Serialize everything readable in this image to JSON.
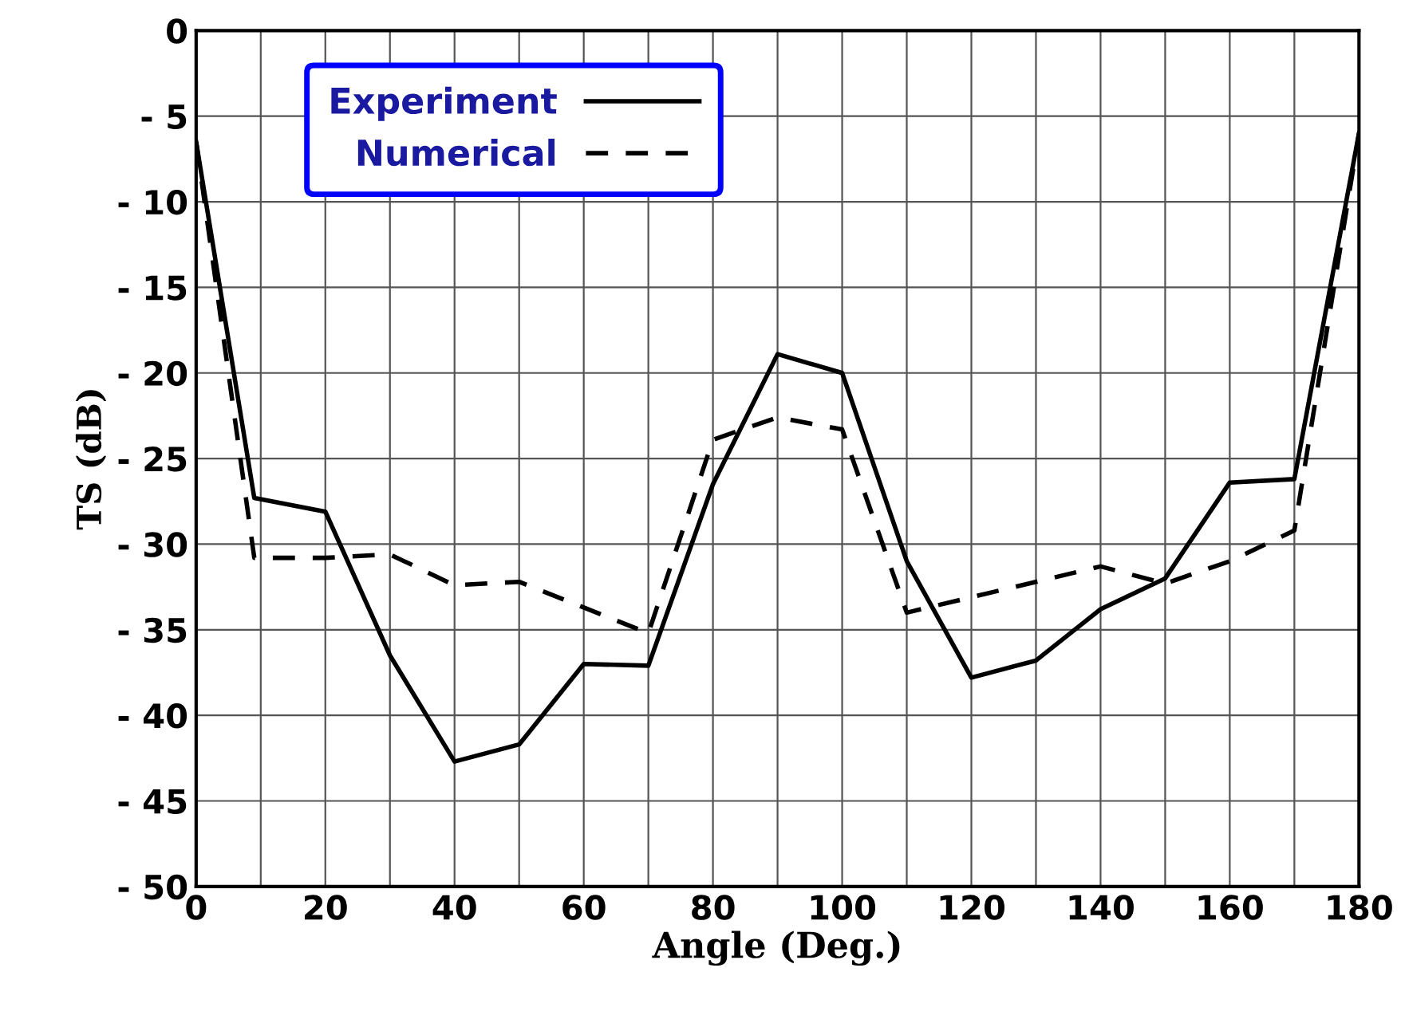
{
  "chart_data": {
    "type": "line",
    "xlabel": "Angle (Deg.)",
    "ylabel": "TS (dB)",
    "series": [
      {
        "name": "Experiment",
        "color": "#000000",
        "line_style": "solid",
        "x": [
          0,
          9,
          20,
          30,
          40,
          50,
          60,
          70,
          80,
          90,
          100,
          110,
          120,
          130,
          140,
          150,
          160,
          170,
          180
        ],
        "values": [
          -6.5,
          -27.3,
          -28.1,
          -36.5,
          -42.7,
          -41.7,
          -37,
          -37.1,
          -26.5,
          -18.9,
          -20,
          -31,
          -37.8,
          -36.8,
          -33.8,
          -32,
          -26.4,
          -26.2,
          -6
        ]
      },
      {
        "name": "Numerical",
        "color": "#000000",
        "line_style": "dashed",
        "x": [
          0,
          9,
          20,
          30,
          40,
          50,
          60,
          70,
          80,
          90,
          100,
          110,
          120,
          130,
          140,
          150,
          160,
          170,
          180
        ],
        "values": [
          -6.5,
          -30.8,
          -30.8,
          -30.6,
          -32.4,
          -32.2,
          -33.7,
          -35.2,
          -23.9,
          -22.6,
          -23.3,
          -34,
          -33.1,
          -32.2,
          -31.3,
          -32.3,
          -31,
          -29.2,
          -6
        ]
      }
    ],
    "xlim": [
      0,
      180
    ],
    "xticks": [
      0,
      20,
      40,
      60,
      80,
      100,
      120,
      140,
      160,
      180
    ],
    "ylim": [
      -50,
      0
    ],
    "yticks": [
      {
        "value": -50,
        "label": "- 50"
      },
      {
        "value": -45,
        "label": "- 45"
      },
      {
        "value": -40,
        "label": "- 40"
      },
      {
        "value": -35,
        "label": "- 35"
      },
      {
        "value": -30,
        "label": "- 30"
      },
      {
        "value": -25,
        "label": "- 25"
      },
      {
        "value": -20,
        "label": "- 20"
      },
      {
        "value": -15,
        "label": "- 15"
      },
      {
        "value": -10,
        "label": "- 10"
      },
      {
        "value": -5,
        "label": "- 5"
      },
      0
    ],
    "grid": true,
    "legend": "top left",
    "marker": "none"
  }
}
